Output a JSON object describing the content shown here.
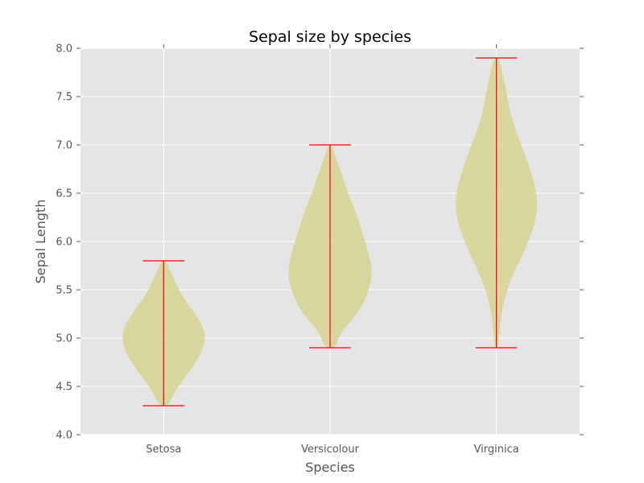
{
  "chart_data": {
    "type": "violin",
    "title": "Sepal size by species",
    "xlabel": "Species",
    "ylabel": "Sepal Length",
    "ylim": [
      4.0,
      8.0
    ],
    "yticks": [
      "4.0",
      "4.5",
      "5.0",
      "5.5",
      "6.0",
      "6.5",
      "7.0",
      "7.5",
      "8.0"
    ],
    "grid": true,
    "categories": [
      "Setosa",
      "Versicolour",
      "Virginica"
    ],
    "series": [
      {
        "category": "Setosa",
        "min": 4.3,
        "max": 5.8,
        "density": [
          [
            4.3,
            0.1
          ],
          [
            4.4,
            0.22
          ],
          [
            4.5,
            0.35
          ],
          [
            4.6,
            0.52
          ],
          [
            4.7,
            0.7
          ],
          [
            4.8,
            0.84
          ],
          [
            4.9,
            0.95
          ],
          [
            5.0,
            1.0
          ],
          [
            5.1,
            0.96
          ],
          [
            5.2,
            0.84
          ],
          [
            5.3,
            0.68
          ],
          [
            5.4,
            0.5
          ],
          [
            5.5,
            0.37
          ],
          [
            5.6,
            0.26
          ],
          [
            5.7,
            0.15
          ],
          [
            5.8,
            0.06
          ]
        ]
      },
      {
        "category": "Versicolour",
        "min": 4.9,
        "max": 7.0,
        "density": [
          [
            4.9,
            0.12
          ],
          [
            5.0,
            0.2
          ],
          [
            5.1,
            0.34
          ],
          [
            5.2,
            0.55
          ],
          [
            5.3,
            0.72
          ],
          [
            5.4,
            0.84
          ],
          [
            5.5,
            0.93
          ],
          [
            5.6,
            0.99
          ],
          [
            5.7,
            1.0
          ],
          [
            5.8,
            0.97
          ],
          [
            5.9,
            0.91
          ],
          [
            6.0,
            0.84
          ],
          [
            6.1,
            0.77
          ],
          [
            6.2,
            0.7
          ],
          [
            6.3,
            0.62
          ],
          [
            6.4,
            0.53
          ],
          [
            6.5,
            0.44
          ],
          [
            6.6,
            0.36
          ],
          [
            6.7,
            0.28
          ],
          [
            6.8,
            0.2
          ],
          [
            6.9,
            0.11
          ],
          [
            7.0,
            0.04
          ]
        ]
      },
      {
        "category": "Virginica",
        "min": 4.9,
        "max": 7.9,
        "density": [
          [
            4.9,
            0.03
          ],
          [
            5.0,
            0.06
          ],
          [
            5.2,
            0.1
          ],
          [
            5.4,
            0.19
          ],
          [
            5.6,
            0.34
          ],
          [
            5.8,
            0.56
          ],
          [
            6.0,
            0.77
          ],
          [
            6.2,
            0.93
          ],
          [
            6.4,
            1.0
          ],
          [
            6.6,
            0.92
          ],
          [
            6.8,
            0.77
          ],
          [
            7.0,
            0.6
          ],
          [
            7.2,
            0.42
          ],
          [
            7.4,
            0.3
          ],
          [
            7.6,
            0.22
          ],
          [
            7.8,
            0.12
          ],
          [
            7.9,
            0.05
          ]
        ]
      }
    ],
    "colors": {
      "violin_fill": "#d6d48f",
      "whisker": "#ff0000",
      "plot_background": "#e5e5e5",
      "grid": "#ffffff"
    }
  }
}
